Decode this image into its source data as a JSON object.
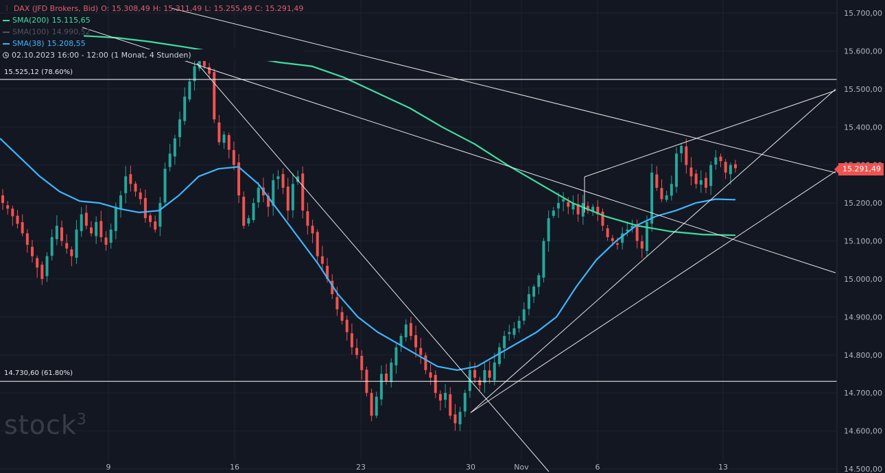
{
  "legend": {
    "symbol": "DAX (JFD Brokers, Bid)",
    "open": "O: 15.308,49",
    "high": "H: 15.311,49",
    "low": "L: 15.255,49",
    "close": "C: 15.291,49",
    "sma200_label": "SMA(200)",
    "sma200_value": "15.115,65",
    "sma100_label": "SMA(100)",
    "sma100_value": "14.990,52",
    "sma38_label": "SMA(38)",
    "sma38_value": "15.208,55",
    "timestamp": "02.10.2023 16:00 - 12:00",
    "timeframe": "(1 Monat, 4 Stunden)"
  },
  "fib_levels": {
    "upper_label": "15.525,12 (78.60%)",
    "lower_label": "14.730,60 (61.80%)"
  },
  "last_price_label": "15.291,49",
  "watermark": {
    "text": "stock",
    "sup": "3"
  },
  "colors": {
    "background": "#131722",
    "up": "#26a69a",
    "down": "#ef5350",
    "sma200": "#3fdf9f",
    "sma38": "#3fb6ff",
    "trendline": "#e8e8e8"
  },
  "chart_data": {
    "type": "candlestick",
    "instrument": "DAX",
    "y_axis": {
      "range": [
        14500,
        15730
      ],
      "ticks": [
        14500,
        14600,
        14700,
        14800,
        14900,
        15000,
        15100,
        15200,
        15300,
        15400,
        15500,
        15600,
        15700
      ],
      "tick_labels": [
        "14.500,00",
        "14.600,00",
        "14.700,00",
        "14.800,00",
        "14.900,00",
        "15.000,00",
        "15.100,00",
        "15.200,00",
        "15.300,00",
        "15.400,00",
        "15.500,00",
        "15.600,00",
        "15.700,00"
      ]
    },
    "x_axis": {
      "tick_labels": [
        "9",
        "16",
        "23",
        "30",
        "Nov",
        "6",
        "13"
      ]
    },
    "horizontal_levels": [
      15525.12,
      14730.6
    ],
    "closes": [
      15200,
      15185,
      15165,
      15145,
      15120,
      15090,
      15060,
      15030,
      15000,
      15060,
      15110,
      15140,
      15100,
      15080,
      15060,
      15130,
      15170,
      15140,
      15120,
      15150,
      15110,
      15090,
      15130,
      15190,
      15220,
      15270,
      15250,
      15230,
      15210,
      15160,
      15150,
      15130,
      15200,
      15290,
      15330,
      15370,
      15420,
      15480,
      15520,
      15560,
      15580,
      15560,
      15540,
      15420,
      15360,
      15380,
      15340,
      15300,
      15220,
      15140,
      15160,
      15200,
      15240,
      15220,
      15190,
      15260,
      15270,
      15240,
      15180,
      15250,
      15270,
      15180,
      15140,
      15120,
      15060,
      15040,
      15000,
      14960,
      14920,
      14890,
      14860,
      14820,
      14800,
      14760,
      14700,
      14640,
      14690,
      14750,
      14730,
      14780,
      14820,
      14850,
      14880,
      14850,
      14820,
      14800,
      14760,
      14740,
      14700,
      14680,
      14700,
      14640,
      14620,
      14650,
      14700,
      14760,
      14740,
      14720,
      14760,
      14740,
      14780,
      14820,
      14850,
      14860,
      14870,
      14890,
      14920,
      14960,
      14980,
      15010,
      15100,
      15160,
      15180,
      15200,
      15210,
      15190,
      15200,
      15170,
      15200,
      15180,
      15190,
      15170,
      15140,
      15110,
      15100,
      15090,
      15120,
      15130,
      15140,
      15100,
      15080,
      15150,
      15280,
      15240,
      15210,
      15220,
      15250,
      15330,
      15350,
      15300,
      15270,
      15250,
      15260,
      15240,
      15300,
      15320,
      15310,
      15280,
      15300,
      15291.49
    ],
    "series": [
      {
        "name": "SMA(200)",
        "values": [
          15640,
          15635,
          15625,
          15612,
          15598,
          15585,
          15570,
          15560,
          15530,
          15490,
          15450,
          15400,
          15355,
          15300,
          15250,
          15200,
          15165,
          15140,
          15125,
          15117,
          15115
        ]
      },
      {
        "name": "SMA(38)",
        "values": [
          15370,
          15320,
          15270,
          15230,
          15205,
          15200,
          15185,
          15175,
          15180,
          15220,
          15270,
          15290,
          15295,
          15250,
          15180,
          15110,
          15040,
          14960,
          14900,
          14860,
          14830,
          14800,
          14770,
          14760,
          14770,
          14800,
          14830,
          14860,
          14900,
          14980,
          15050,
          15100,
          15140,
          15165,
          15180,
          15200,
          15210,
          15208.55
        ]
      }
    ]
  }
}
